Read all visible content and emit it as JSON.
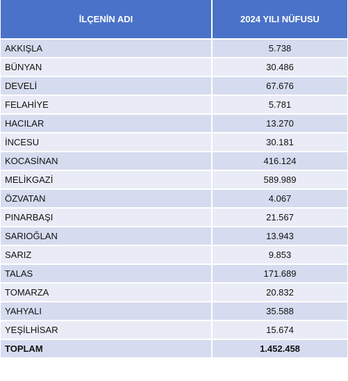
{
  "table": {
    "header": [
      "İLÇENİN ADI",
      "2024 YILI NÜFUSU"
    ],
    "rows": [
      [
        "AKKIŞLA",
        "5.738"
      ],
      [
        "BÜNYAN",
        "30.486"
      ],
      [
        "DEVELİ",
        "67.676"
      ],
      [
        "FELAHİYE",
        "5.781"
      ],
      [
        "HACILAR",
        "13.270"
      ],
      [
        "İNCESU",
        "30.181"
      ],
      [
        "KOCASİNAN",
        "416.124"
      ],
      [
        "MELİKGAZİ",
        "589.989"
      ],
      [
        "ÖZVATAN",
        "4.067"
      ],
      [
        "PINARBAŞI",
        "21.567"
      ],
      [
        "SARIOĞLAN",
        "13.943"
      ],
      [
        "SARIZ",
        "9.853"
      ],
      [
        "TALAS",
        "171.689"
      ],
      [
        "TOMARZA",
        "20.832"
      ],
      [
        "YAHYALI",
        "35.588"
      ],
      [
        "YEŞİLHİSAR",
        "15.674"
      ]
    ],
    "total": [
      "TOPLAM",
      "1.452.458"
    ]
  }
}
